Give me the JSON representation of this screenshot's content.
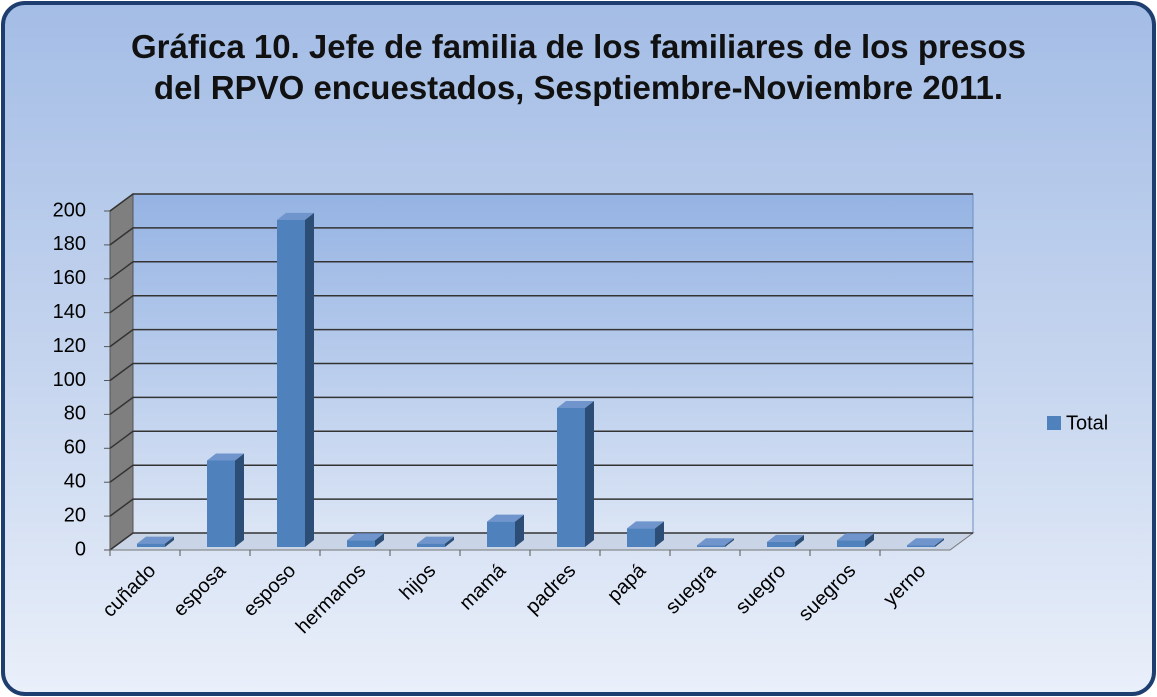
{
  "chart_data": {
    "type": "bar3d",
    "title": "Gráfica 10. Jefe de familia de los familiares de los presos del RPVO encuestados, Sesptiembre-Noviembre 2011.",
    "categories": [
      "cuñado",
      "esposa",
      "esposo",
      "hermanos",
      "hijos",
      "mamá",
      "padres",
      "papá",
      "suegra",
      "suegro",
      "suegros",
      "yerno"
    ],
    "series": [
      {
        "name": "Total",
        "color": "#4f81bd",
        "values": [
          2,
          51,
          193,
          4,
          2,
          15,
          82,
          11,
          1,
          3,
          4,
          1
        ]
      }
    ],
    "ylim": [
      0,
      200
    ],
    "yticks": [
      0,
      20,
      40,
      60,
      80,
      100,
      120,
      140,
      160,
      180,
      200
    ],
    "grid": true,
    "legend": "right"
  }
}
